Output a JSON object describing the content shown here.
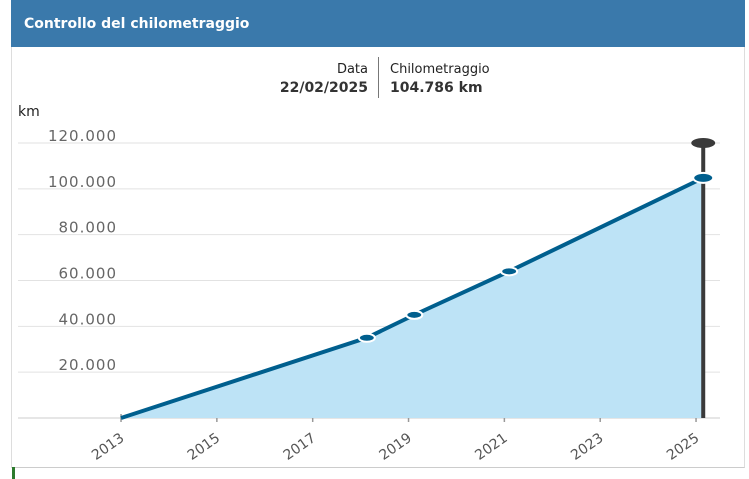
{
  "header": {
    "title": "Controllo del chilometraggio"
  },
  "info": {
    "date_label": "Data",
    "date": "22/02/2025",
    "km_label": "Chilometraggio",
    "km": "104.786 km"
  },
  "chart_data": {
    "type": "line",
    "y_unit": "km",
    "x": [
      2013,
      2018.13,
      2019.12,
      2021.1,
      2025.15
    ],
    "values": [
      0,
      35000,
      45000,
      64000,
      104786
    ],
    "color": "#005f8e",
    "fill_color": "#bde3f6",
    "xlim": [
      2010.85,
      2025.5
    ],
    "xticks": [
      2013,
      2015,
      2017,
      2019,
      2021,
      2023,
      2025
    ],
    "ylim": [
      0,
      120000
    ],
    "yticks": [
      {
        "value": 20000,
        "label": "20.000"
      },
      {
        "value": 40000,
        "label": "40.000"
      },
      {
        "value": 60000,
        "label": "60.000"
      },
      {
        "value": 80000,
        "label": "80.000"
      },
      {
        "value": 100000,
        "label": "100.000"
      },
      {
        "value": 120000,
        "label": "120.000"
      }
    ],
    "grid": true
  }
}
